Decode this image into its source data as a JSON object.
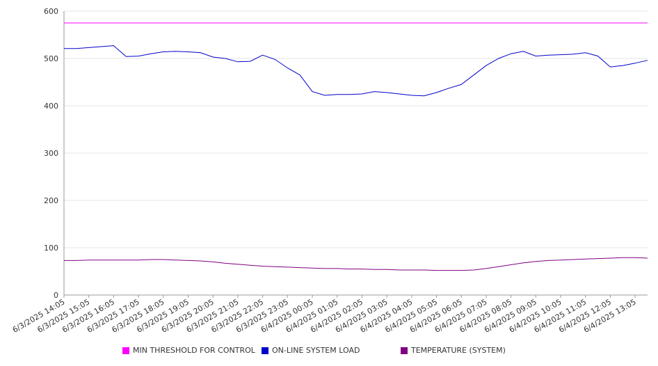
{
  "chart_data": {
    "type": "line",
    "title": "",
    "xlabel": "",
    "ylabel": "",
    "ylim": [
      0,
      600
    ],
    "yticks": [
      0,
      100,
      200,
      300,
      400,
      500,
      600
    ],
    "grid": true,
    "legend_position": "bottom",
    "x_tick_labels": [
      "6/3/2025 14:05",
      "6/3/2025 15:05",
      "6/3/2025 16:05",
      "6/3/2025 17:05",
      "6/3/2025 18:05",
      "6/3/2025 19:05",
      "6/3/2025 20:05",
      "6/3/2025 21:05",
      "6/3/2025 22:05",
      "6/3/2025 23:05",
      "6/4/2025 00:05",
      "6/4/2025 01:05",
      "6/4/2025 02:05",
      "6/4/2025 03:05",
      "6/4/2025 04:05",
      "6/4/2025 05:05",
      "6/4/2025 06:05",
      "6/4/2025 07:05",
      "6/4/2025 08:05",
      "6/4/2025 09:05",
      "6/4/2025 10:05",
      "6/4/2025 11:05",
      "6/4/2025 12:05",
      "6/4/2025 13:05"
    ],
    "x": [
      "6/3/2025 14:05",
      "6/3/2025 14:35",
      "6/3/2025 15:05",
      "6/3/2025 15:35",
      "6/3/2025 16:05",
      "6/3/2025 16:35",
      "6/3/2025 17:05",
      "6/3/2025 17:35",
      "6/3/2025 18:05",
      "6/3/2025 18:35",
      "6/3/2025 19:05",
      "6/3/2025 19:35",
      "6/3/2025 20:05",
      "6/3/2025 20:35",
      "6/3/2025 21:05",
      "6/3/2025 21:35",
      "6/3/2025 22:05",
      "6/3/2025 22:35",
      "6/3/2025 23:05",
      "6/3/2025 23:35",
      "6/4/2025 00:05",
      "6/4/2025 00:35",
      "6/4/2025 01:05",
      "6/4/2025 01:35",
      "6/4/2025 02:05",
      "6/4/2025 02:35",
      "6/4/2025 03:05",
      "6/4/2025 03:35",
      "6/4/2025 04:05",
      "6/4/2025 04:35",
      "6/4/2025 05:05",
      "6/4/2025 05:35",
      "6/4/2025 06:05",
      "6/4/2025 06:35",
      "6/4/2025 07:05",
      "6/4/2025 07:35",
      "6/4/2025 08:05",
      "6/4/2025 08:35",
      "6/4/2025 09:05",
      "6/4/2025 09:35",
      "6/4/2025 10:05",
      "6/4/2025 10:35",
      "6/4/2025 11:05",
      "6/4/2025 11:35",
      "6/4/2025 12:05",
      "6/4/2025 12:35",
      "6/4/2025 13:05",
      "6/4/2025 13:35"
    ],
    "series": [
      {
        "name": "MIN THRESHOLD FOR CONTROL",
        "color": "#ff00ff",
        "values": [
          575,
          575,
          575,
          575,
          575,
          575,
          575,
          575,
          575,
          575,
          575,
          575,
          575,
          575,
          575,
          575,
          575,
          575,
          575,
          575,
          575,
          575,
          575,
          575,
          575,
          575,
          575,
          575,
          575,
          575,
          575,
          575,
          575,
          575,
          575,
          575,
          575,
          575,
          575,
          575,
          575,
          575,
          575,
          575,
          575,
          575,
          575,
          575
        ]
      },
      {
        "name": "ON-LINE SYSTEM LOAD",
        "color": "#0000cc",
        "values": [
          521,
          521,
          523,
          525,
          527,
          504,
          505,
          510,
          514,
          515,
          514,
          512,
          503,
          500,
          493,
          494,
          507,
          498,
          480,
          465,
          430,
          422,
          424,
          424,
          425,
          430,
          428,
          425,
          422,
          421,
          428,
          437,
          445,
          465,
          485,
          500,
          510,
          515,
          505,
          507,
          508,
          509,
          512,
          505,
          482,
          485,
          490,
          496
        ]
      },
      {
        "name": "TEMPERATURE (SYSTEM)",
        "color": "#800080",
        "values": [
          73,
          73,
          74,
          74,
          74,
          74,
          74,
          75,
          75,
          74,
          73,
          72,
          70,
          67,
          65,
          63,
          61,
          60,
          59,
          58,
          57,
          56,
          56,
          55,
          55,
          54,
          54,
          53,
          53,
          53,
          52,
          52,
          52,
          53,
          56,
          60,
          64,
          68,
          71,
          73,
          74,
          75,
          76,
          77,
          78,
          79,
          79,
          78
        ]
      }
    ]
  }
}
